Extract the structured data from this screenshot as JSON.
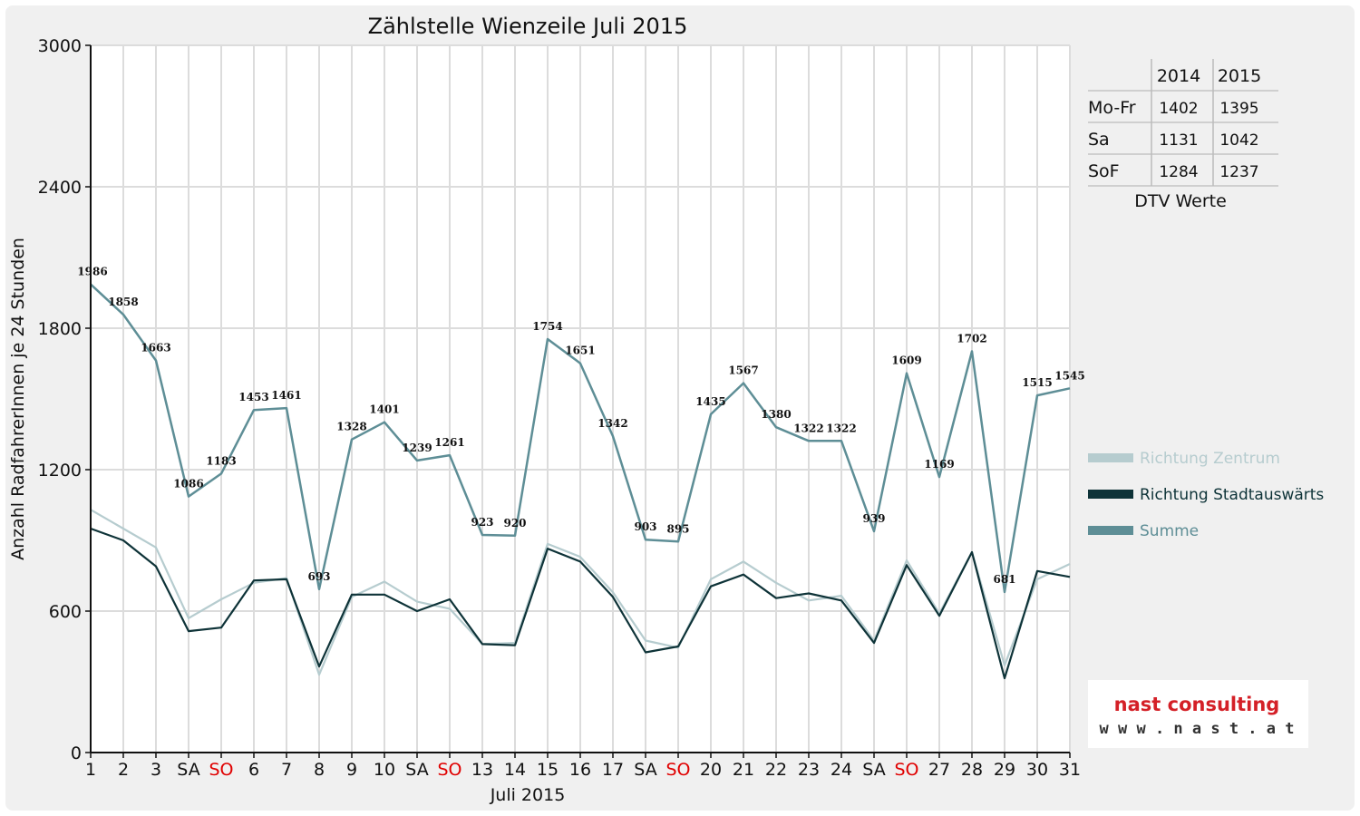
{
  "chart_data": {
    "type": "line",
    "title": "Zählstelle Wienzeile Juli 2015",
    "xlabel": "Juli 2015",
    "ylabel": "Anzahl RadfahrerInnen je 24 Stunden",
    "ylim": [
      0,
      3000
    ],
    "yticks": [
      "0",
      "600",
      "1200",
      "1800",
      "2400",
      "3000"
    ],
    "grid": true,
    "legend_position": "right",
    "categories": [
      "1",
      "2",
      "3",
      "SA",
      "SO",
      "6",
      "7",
      "8",
      "9",
      "10",
      "SA",
      "SO",
      "13",
      "14",
      "15",
      "16",
      "17",
      "SA",
      "SO",
      "20",
      "21",
      "22",
      "23",
      "24",
      "SA",
      "SO",
      "27",
      "28",
      "29",
      "30",
      "31"
    ],
    "red_categories": [
      4,
      11,
      18,
      25
    ],
    "series": [
      {
        "name": "Richtung Zentrum",
        "color": "#b6cccf",
        "values": [
          1030,
          950,
          870,
          570,
          650,
          720,
          740,
          330,
          660,
          725,
          640,
          610,
          460,
          465,
          885,
          830,
          680,
          475,
          445,
          735,
          810,
          720,
          645,
          665,
          475,
          815,
          590,
          850,
          370,
          735,
          800
        ]
      },
      {
        "name": "Richtung Stadtauswärts",
        "color": "#0e3338",
        "values": [
          950,
          900,
          790,
          515,
          530,
          730,
          735,
          365,
          670,
          670,
          600,
          650,
          460,
          455,
          865,
          810,
          660,
          425,
          450,
          705,
          755,
          655,
          675,
          645,
          465,
          795,
          580,
          850,
          315,
          770,
          745
        ]
      },
      {
        "name": "Summe",
        "color": "#5e8e96",
        "values": [
          1986,
          1858,
          1663,
          1086,
          1183,
          1453,
          1461,
          693,
          1328,
          1401,
          1239,
          1261,
          923,
          920,
          1754,
          1651,
          1342,
          903,
          895,
          1435,
          1567,
          1380,
          1322,
          1322,
          939,
          1609,
          1169,
          1702,
          681,
          1515,
          1545
        ],
        "labels": [
          "1986",
          "1858",
          "1663",
          "1086",
          "1183",
          "1453",
          "1461",
          "693",
          "1328",
          "1401",
          "1239",
          "1261",
          "923",
          "920",
          "1754",
          "1651",
          "1342",
          "903",
          "895",
          "1435",
          "1567",
          "1380",
          "1322",
          "1322",
          "939",
          "1609",
          "1169",
          "1702",
          "681",
          "1515",
          "1545"
        ]
      }
    ],
    "table": {
      "columns": [
        "2014",
        "2015"
      ],
      "rows": [
        {
          "label": "Mo-Fr",
          "values": [
            "1402",
            "1395"
          ]
        },
        {
          "label": "Sa",
          "values": [
            "1131",
            "1042"
          ]
        },
        {
          "label": "SoF",
          "values": [
            "1284",
            "1237"
          ]
        }
      ],
      "caption": "DTV Werte"
    }
  },
  "logo": {
    "line1": "nast consulting",
    "line2": "w w w . n a s t . a t",
    "color": "#d42027"
  }
}
